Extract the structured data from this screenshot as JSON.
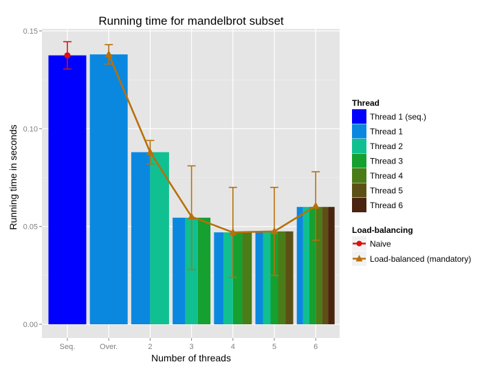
{
  "chart_data": {
    "type": "bar",
    "title": "Running time for mandelbrot subset",
    "xlabel": "Number of threads",
    "ylabel": "Running time in seconds",
    "ylim": [
      0,
      0.152
    ],
    "yticks": [
      "0.00",
      "0.05",
      "0.10",
      "0.15"
    ],
    "categories": [
      "Seq.",
      "Over.",
      "2",
      "3",
      "4",
      "5",
      "6"
    ],
    "thread_legend": {
      "title": "Thread",
      "entries": [
        {
          "name": "Thread 1 (seq.)",
          "color": "#0000ff"
        },
        {
          "name": "Thread 1",
          "color": "#0a88e0"
        },
        {
          "name": "Thread 2",
          "color": "#10c090"
        },
        {
          "name": "Thread 3",
          "color": "#16a030"
        },
        {
          "name": "Thread 4",
          "color": "#4a7c18"
        },
        {
          "name": "Thread 5",
          "color": "#5c5016"
        },
        {
          "name": "Thread 6",
          "color": "#4a2410"
        }
      ]
    },
    "groups": [
      {
        "category": "Seq.",
        "threads": [
          0
        ],
        "value": 0.1375
      },
      {
        "category": "Over.",
        "threads": [
          1
        ],
        "value": 0.138
      },
      {
        "category": "2",
        "threads": [
          1,
          2
        ],
        "value": 0.088
      },
      {
        "category": "3",
        "threads": [
          1,
          2,
          3
        ],
        "value": 0.0545
      },
      {
        "category": "4",
        "threads": [
          1,
          2,
          3,
          4
        ],
        "value": 0.047
      },
      {
        "category": "5",
        "threads": [
          1,
          2,
          3,
          4,
          5
        ],
        "value": 0.0475
      },
      {
        "category": "6",
        "threads": [
          1,
          2,
          3,
          4,
          5,
          6
        ],
        "value": 0.06
      }
    ],
    "lb_legend": {
      "title": "Load-balancing",
      "entries": [
        {
          "name": "Naive",
          "color": "#dd1010",
          "marker": "circle"
        },
        {
          "name": "Load-balanced (mandatory)",
          "color": "#b8700a",
          "marker": "triangle"
        }
      ]
    },
    "series": [
      {
        "name": "Naive",
        "points": [
          {
            "x": "Seq.",
            "y": 0.1375,
            "ymin": 0.1305,
            "ymax": 0.1445
          }
        ]
      },
      {
        "name": "Load-balanced (mandatory)",
        "points": [
          {
            "x": "Over.",
            "y": 0.138,
            "ymin": 0.133,
            "ymax": 0.143
          },
          {
            "x": "2",
            "y": 0.088,
            "ymin": 0.082,
            "ymax": 0.094
          },
          {
            "x": "3",
            "y": 0.055,
            "ymin": 0.028,
            "ymax": 0.081
          },
          {
            "x": "4",
            "y": 0.047,
            "ymin": 0.024,
            "ymax": 0.07
          },
          {
            "x": "5",
            "y": 0.0475,
            "ymin": 0.025,
            "ymax": 0.07
          },
          {
            "x": "6",
            "y": 0.0605,
            "ymin": 0.043,
            "ymax": 0.078
          }
        ]
      }
    ],
    "grid": true,
    "legend_position": "right"
  }
}
